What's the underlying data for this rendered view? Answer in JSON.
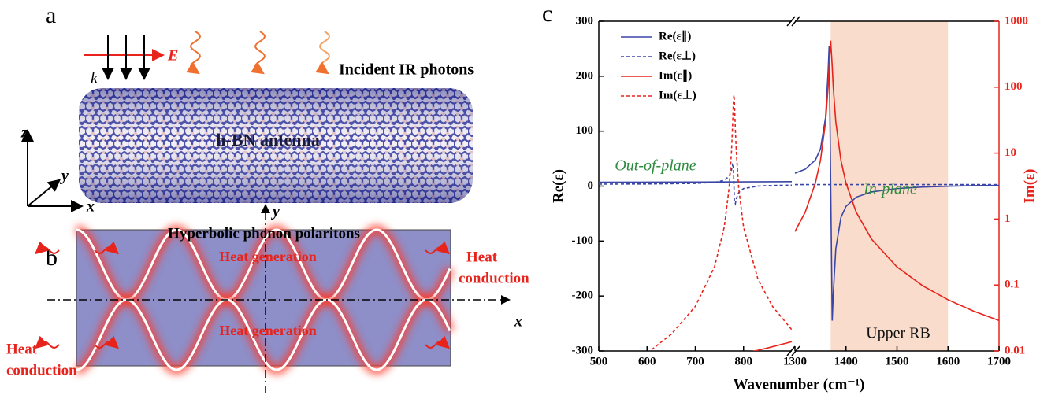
{
  "panel_a": {
    "label": "a",
    "e_field": "E",
    "k_vector": "k",
    "photons": "Incident IR photons",
    "antenna": "h-BN antenna",
    "axis_z": "z",
    "axis_y": "y",
    "axis_x": "x"
  },
  "panel_b": {
    "label": "b",
    "title": "Hyperbolic phonon polaritons",
    "axis_y": "y",
    "axis_x": "x",
    "heat_generation": [
      "Heat generation",
      "Heat generation"
    ],
    "heat_conduction_right": [
      "Heat",
      "conduction"
    ],
    "heat_conduction_left": [
      "Heat",
      "conduction"
    ]
  },
  "chart_data": {
    "type": "line",
    "panel_label": "c",
    "x_label": "Wavenumber (cm⁻¹)",
    "y_label": "Re(ε)",
    "y2_label": "Im(ε)",
    "x_segments": [
      {
        "xlim": [
          500,
          900
        ],
        "xticks": [
          500,
          600,
          700,
          800
        ]
      },
      {
        "xlim": [
          1300,
          1700
        ],
        "xticks": [
          1300,
          1400,
          1500,
          1600,
          1700
        ]
      }
    ],
    "ylim": [
      -300,
      300
    ],
    "yticks": [
      -300,
      -200,
      -100,
      0,
      100,
      200,
      300
    ],
    "y2lim": [
      0.01,
      1000
    ],
    "y2ticks": [
      0.01,
      0.1,
      1,
      10,
      100,
      1000
    ],
    "y2_scale": "log",
    "y2_color": "#e8231c",
    "legend": "upper left",
    "shaded_band": {
      "xlim": [
        1370,
        1600
      ],
      "color": "#f9dccb"
    },
    "annotations": {
      "out_of_plane": "Out-of-plane",
      "in_plane": "In-plane",
      "band": "Upper RB"
    },
    "series": [
      {
        "name": "Re(ε∥)",
        "color": "#3a45a8",
        "dashed": false,
        "axis": "y",
        "x": [
          500,
          700,
          900,
          1300,
          1320,
          1340,
          1350,
          1360,
          1365,
          1367,
          1370,
          1373,
          1375,
          1380,
          1390,
          1400,
          1420,
          1450,
          1500,
          1550,
          1600,
          1650,
          1700
        ],
        "values": [
          7.0,
          7.4,
          8.1,
          23.5,
          30.7,
          47.4,
          67.9,
          125,
          208.8,
          255.5,
          4.87,
          -244.8,
          -197.9,
          -114.3,
          -57.2,
          -37.0,
          -20.1,
          -10.6,
          -4.47,
          -1.76,
          -0.23,
          0.75,
          1.43
        ]
      },
      {
        "name": "Re(ε⊥)",
        "color": "#3a45a8",
        "dashed": true,
        "axis": "y",
        "x": [
          500,
          600,
          700,
          740,
          760,
          770,
          775,
          777,
          779,
          780,
          781,
          783,
          785,
          790,
          800,
          830,
          860,
          900,
          1300,
          1700
        ],
        "values": [
          3.61,
          3.91,
          4.96,
          6.85,
          10.6,
          17.7,
          29.3,
          38.2,
          33.4,
          2.95,
          -27.6,
          -32.1,
          -23.2,
          -11.6,
          -4.49,
          0,
          1.14,
          1.77,
          2.73,
          2.85
        ]
      },
      {
        "name": "Im(ε∥)",
        "color": "#e8231c",
        "dashed": false,
        "axis": "y2",
        "x": [
          800,
          850,
          900,
          1300,
          1320,
          1340,
          1350,
          1360,
          1365,
          1367,
          1370,
          1373,
          1375,
          1380,
          1390,
          1400,
          1420,
          1450,
          1500,
          1550,
          1600,
          1650,
          1700
        ],
        "values": [
          0.0091,
          0.0111,
          0.0138,
          0.647,
          1.268,
          3.51,
          7.82,
          29.9,
          101.8,
          208.6,
          508,
          208.3,
          101.6,
          29.9,
          7.82,
          3.51,
          1.27,
          0.496,
          0.188,
          0.0977,
          0.0597,
          0.0402,
          0.0289
        ]
      },
      {
        "name": "Im(ε⊥)",
        "color": "#e8231c",
        "dashed": true,
        "axis": "y2",
        "x": [
          500,
          600,
          650,
          700,
          740,
          760,
          770,
          775,
          777,
          779,
          780,
          781,
          783,
          785,
          790,
          800,
          830,
          860,
          900
        ],
        "values": [
          0.0037,
          0.00924,
          0.01787,
          0.0474,
          0.19,
          0.754,
          2.93,
          10.5,
          23.4,
          61,
          76.1,
          60.8,
          23.4,
          10.5,
          2.93,
          0.753,
          0.121,
          0.0474,
          0.021
        ]
      }
    ]
  }
}
